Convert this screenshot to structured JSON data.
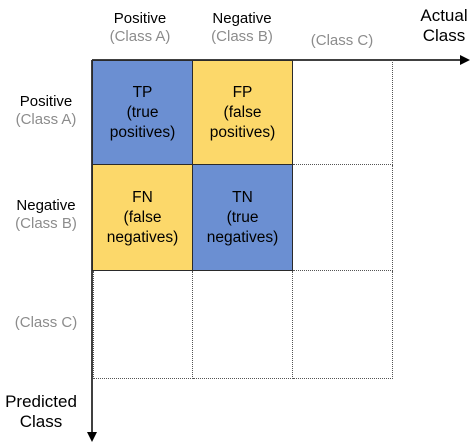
{
  "axes": {
    "actual": {
      "line1": "Actual",
      "line2": "Class"
    },
    "predicted": {
      "line1": "Predicted",
      "line2": "Class"
    }
  },
  "columns": [
    {
      "main": "Positive",
      "sub": "(Class A)"
    },
    {
      "main": "Negative",
      "sub": "(Class B)"
    },
    {
      "main": "",
      "sub": "(Class C)"
    }
  ],
  "rows": [
    {
      "main": "Positive",
      "sub": "(Class A)"
    },
    {
      "main": "Negative",
      "sub": "(Class B)"
    },
    {
      "main": "",
      "sub": "(Class C)"
    }
  ],
  "cells": {
    "tp": {
      "abbr": "TP",
      "line1": "(true",
      "line2": "positives)"
    },
    "fp": {
      "abbr": "FP",
      "line1": "(false",
      "line2": "positives)"
    },
    "fn": {
      "abbr": "FN",
      "line1": "(false",
      "line2": "negatives)"
    },
    "tn": {
      "abbr": "TN",
      "line1": "(true",
      "line2": "negatives)"
    }
  },
  "colors": {
    "positive_correct": "#6b8fd2",
    "error": "#fcd86a",
    "grid": "#555555"
  }
}
